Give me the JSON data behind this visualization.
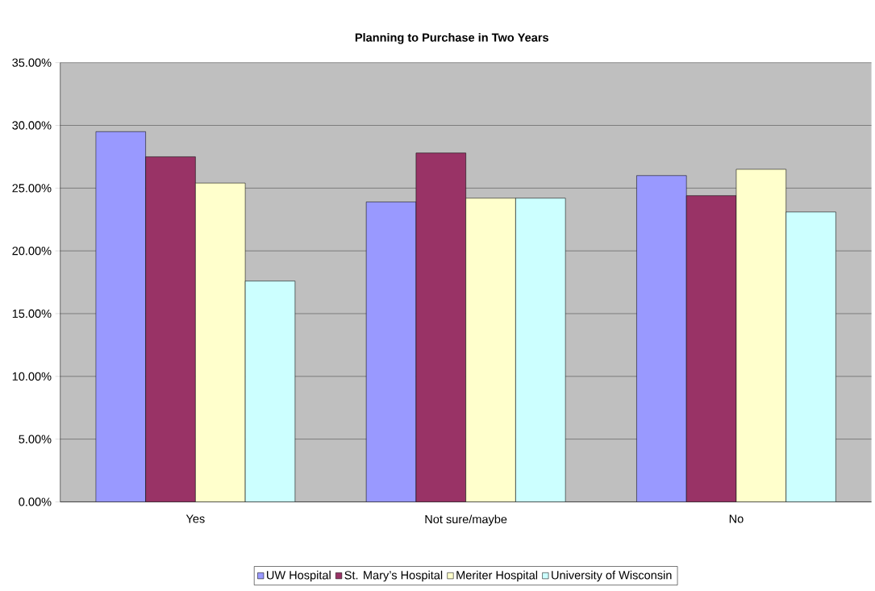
{
  "chart_data": {
    "type": "bar",
    "title": "Planning to Purchase in Two Years",
    "categories": [
      "Yes",
      "Not sure/maybe",
      "No"
    ],
    "series": [
      {
        "name": "UW Hospital",
        "color": "#9999ff",
        "values": [
          29.5,
          23.9,
          26.0
        ]
      },
      {
        "name": "St. Mary’s Hospital",
        "color": "#993366",
        "values": [
          27.5,
          27.8,
          24.4
        ]
      },
      {
        "name": "Meriter Hospital",
        "color": "#ffffcc",
        "values": [
          25.4,
          24.2,
          26.5
        ]
      },
      {
        "name": "University of Wisconsin",
        "color": "#ccffff",
        "values": [
          17.6,
          24.2,
          23.1
        ]
      }
    ],
    "ylim": [
      0,
      35
    ],
    "yticks": [
      {
        "value": 0,
        "label": "0.00%"
      },
      {
        "value": 5,
        "label": "5.00%"
      },
      {
        "value": 10,
        "label": "10.00%"
      },
      {
        "value": 15,
        "label": "15.00%"
      },
      {
        "value": 20,
        "label": "20.00%"
      },
      {
        "value": 25,
        "label": "25.00%"
      },
      {
        "value": 30,
        "label": "30.00%"
      },
      {
        "value": 35,
        "label": "35.00%"
      }
    ],
    "grid": "y",
    "legend": "bottom"
  }
}
